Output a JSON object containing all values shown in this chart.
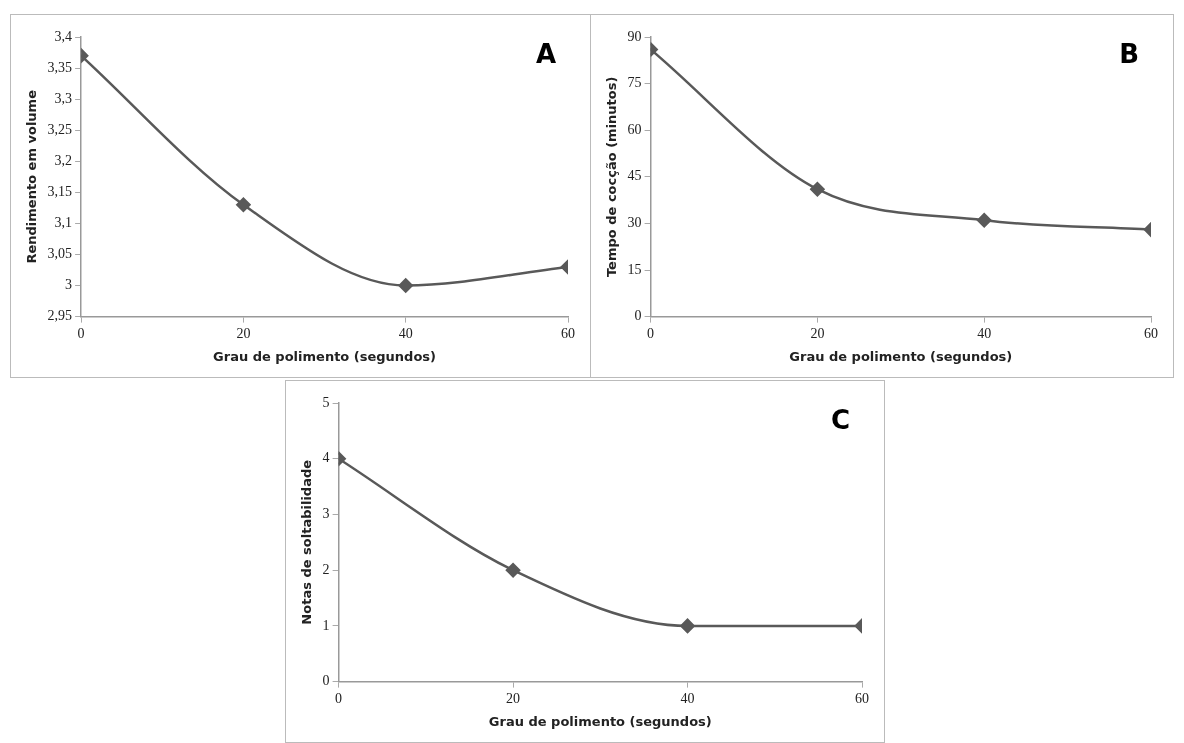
{
  "chart_data": [
    {
      "type": "line",
      "title": "A",
      "xlabel": "Grau de polimento (segundos)",
      "ylabel": "Rendimento em volume",
      "x": [
        0,
        20,
        40,
        60
      ],
      "series": [
        {
          "color": "#595959",
          "values": [
            3.37,
            3.13,
            3.0,
            3.03
          ]
        }
      ],
      "xlim": [
        0,
        60
      ],
      "xticks": [
        0,
        20,
        40,
        60
      ],
      "ylim": [
        2.95,
        3.4
      ],
      "yticks": [
        {
          "value": 2.95,
          "label": "2,95"
        },
        3,
        {
          "value": 3.05,
          "label": "3,05"
        },
        {
          "value": 3.1,
          "label": "3,1"
        },
        {
          "value": 3.15,
          "label": "3,15"
        },
        {
          "value": 3.2,
          "label": "3,2"
        },
        {
          "value": 3.25,
          "label": "3,25"
        },
        {
          "value": 3.3,
          "label": "3,3"
        },
        {
          "value": 3.35,
          "label": "3,35"
        },
        {
          "value": 3.4,
          "label": "3,4"
        }
      ],
      "grid": false,
      "legend": false,
      "marker": "diamond",
      "line_style": "solid"
    },
    {
      "type": "line",
      "title": "B",
      "xlabel": "Grau de polimento (segundos)",
      "ylabel": "Tempo de cocção (minutos)",
      "x": [
        0,
        20,
        40,
        60
      ],
      "series": [
        {
          "color": "#595959",
          "values": [
            86,
            41,
            31,
            28
          ]
        }
      ],
      "xlim": [
        0,
        60
      ],
      "xticks": [
        0,
        20,
        40,
        60
      ],
      "ylim": [
        0,
        90
      ],
      "yticks": [
        0,
        15,
        30,
        45,
        60,
        75,
        90
      ],
      "grid": false,
      "legend": false,
      "marker": "diamond",
      "line_style": "solid"
    },
    {
      "type": "line",
      "title": "C",
      "xlabel": "Grau de polimento (segundos)",
      "ylabel": "Notas de soltabilidade",
      "x": [
        0,
        20,
        40,
        60
      ],
      "series": [
        {
          "color": "#595959",
          "values": [
            4,
            2,
            1,
            1
          ]
        }
      ],
      "xlim": [
        0,
        60
      ],
      "xticks": [
        0,
        20,
        40,
        60
      ],
      "ylim": [
        0,
        5
      ],
      "yticks": [
        0,
        1,
        2,
        3,
        4,
        5
      ],
      "grid": false,
      "legend": false,
      "marker": "diamond",
      "line_style": "solid"
    }
  ]
}
